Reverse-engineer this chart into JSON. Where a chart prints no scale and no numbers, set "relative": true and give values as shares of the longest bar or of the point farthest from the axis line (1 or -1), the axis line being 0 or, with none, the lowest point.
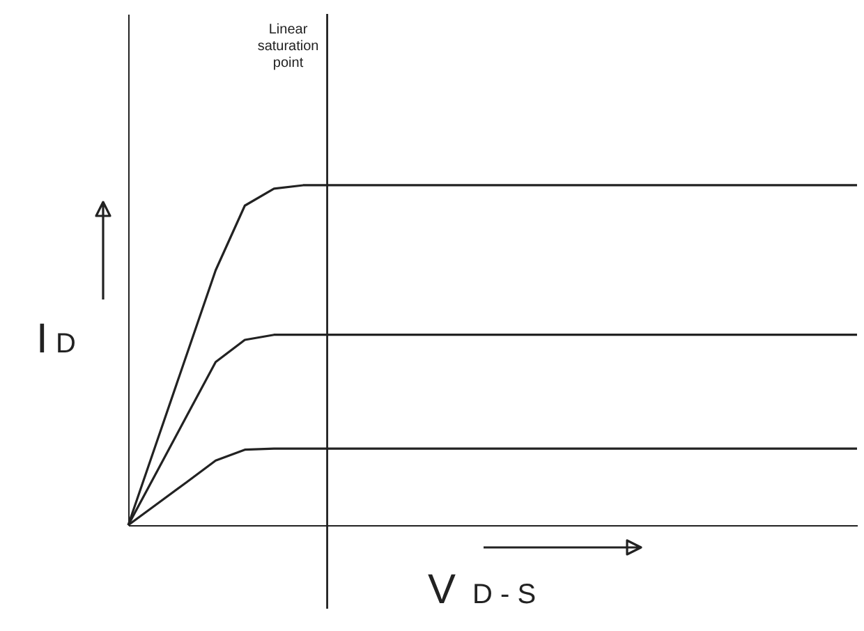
{
  "chart_data": {
    "type": "line",
    "relative": true,
    "xlabel": "V$_{D - S}$",
    "ylabel": "I$_{D}$",
    "categories": [
      null,
      null,
      null,
      null,
      null,
      null,
      null,
      null,
      null,
      null,
      null,
      null,
      null,
      null,
      null,
      null,
      null,
      null,
      null,
      null,
      null,
      null,
      null,
      null,
      null,
      null
    ],
    "series": [
      {
        "color": "#222222",
        "values": [
          0,
          0.25,
          0.5,
          0.75,
          0.94,
          0.99,
          1,
          1,
          1,
          1,
          1,
          1,
          1,
          1,
          1,
          1,
          1,
          1,
          1,
          1,
          1,
          1,
          1,
          1,
          1,
          1
        ]
      },
      {
        "color": "#222222",
        "values": [
          0,
          0.16,
          0.32,
          0.48,
          0.545,
          0.56,
          0.56,
          0.56,
          0.56,
          0.56,
          0.56,
          0.56,
          0.56,
          0.56,
          0.56,
          0.56,
          0.56,
          0.56,
          0.56,
          0.56,
          0.56,
          0.56,
          0.56,
          0.56,
          0.56,
          0.56
        ]
      },
      {
        "color": "#222222",
        "values": [
          0,
          0.063,
          0.126,
          0.19,
          0.222,
          0.225,
          0.225,
          0.225,
          0.225,
          0.225,
          0.225,
          0.225,
          0.225,
          0.225,
          0.225,
          0.225,
          0.225,
          0.225,
          0.225,
          0.225,
          0.225,
          0.225,
          0.225,
          0.225,
          0.225,
          0.225
        ]
      }
    ],
    "annotations": [
      "Linear saturation point"
    ],
    "marker": "none",
    "line_style": "solid"
  }
}
